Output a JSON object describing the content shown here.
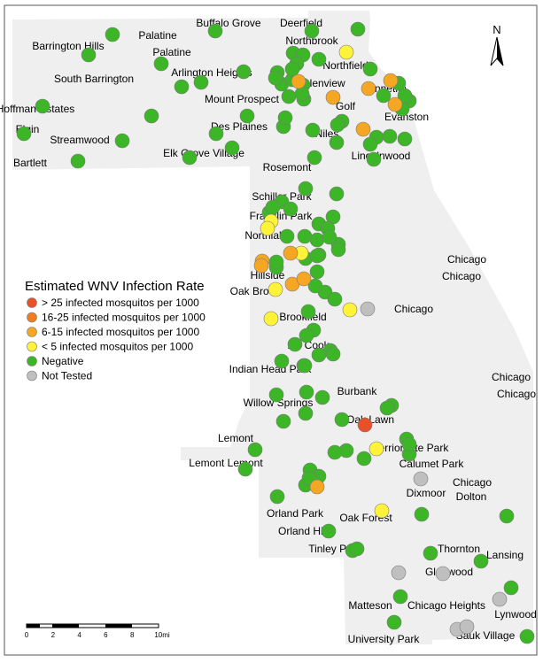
{
  "legend": {
    "title": "Estimated WNV Infection Rate",
    "items": [
      {
        "key": "r25",
        "label": "> 25 infected mosquitos per 1000",
        "color": "#e8502a"
      },
      {
        "key": "r16",
        "label": "16-25 infected mosquitos per 1000",
        "color": "#f07e21"
      },
      {
        "key": "r6",
        "label": "6-15 infected mosquitos per 1000",
        "color": "#f5a623"
      },
      {
        "key": "r5",
        "label": "< 5 infected mosquitos per 1000",
        "color": "#fff33a"
      },
      {
        "key": "neg",
        "label": "Negative",
        "color": "#3cb526"
      },
      {
        "key": "nt",
        "label": "Not Tested",
        "color": "#bfbfbf"
      }
    ]
  },
  "north_arrow": {
    "label": "N"
  },
  "scale_bar": {
    "ticks": [
      "0",
      "2",
      "4",
      "6",
      "8",
      "10mi"
    ]
  },
  "place_labels": [
    "Buffalo Grove",
    "Deerfield",
    "Barrington Hills",
    "Palatine",
    "Palatine",
    "Northbrook",
    "Arlington Heights",
    "Northfield",
    "South Barrington",
    "Glenview",
    "Winnetka",
    "Hoffman Estates",
    "Mount Prospect",
    "Golf",
    "Evanston",
    "Elgin",
    "Streamwood",
    "Des Plaines",
    "Niles",
    "Lincolnwood",
    "Bartlett",
    "Elk Grove Village",
    "Rosemont",
    "Schiller Park",
    "Franklin Park",
    "Northlake",
    "Chicago",
    "Chicago",
    "Hillside",
    "Oak Brook",
    "Chicago",
    "Brookfield",
    "Mc Cook",
    "Indian Head Park",
    "Chicago",
    "Chicago",
    "Willow Springs",
    "Burbank",
    "Oak Lawn",
    "Lemont",
    "Merrionette Park",
    "Lemont Lemont",
    "Calumet Park",
    "Chicago",
    "Dixmoor",
    "Dolton",
    "Orland Park",
    "Oak Forest",
    "Orland Hills",
    "Tinley Park",
    "Thornton",
    "Lansing",
    "Glenwood",
    "Matteson",
    "Chicago Heights",
    "Lynwood",
    "University Park",
    "Sauk Village"
  ],
  "sites": {
    "r25": 1,
    "r16": 0,
    "r6": 12,
    "r5": 9,
    "neg": 117,
    "nt": 7
  }
}
